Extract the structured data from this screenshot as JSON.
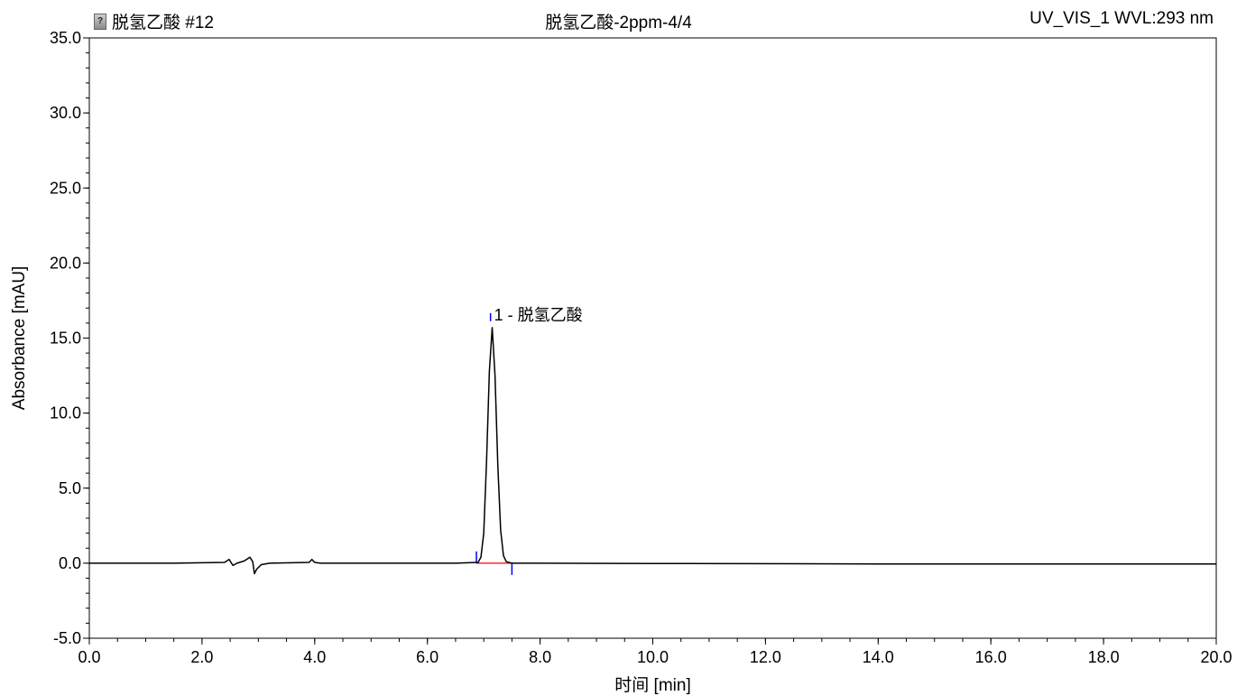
{
  "header": {
    "left_title": "脱氢乙酸 #12",
    "center_title": "脱氢乙酸-2ppm-4/4",
    "right_title": "UV_VIS_1 WVL:293 nm",
    "icon": "question-icon"
  },
  "chart_data": {
    "type": "line",
    "title": "脱氢乙酸-2ppm-4/4",
    "xlabel": "时间 [min]",
    "ylabel": "Absorbance [mAU]",
    "xlim": [
      0.0,
      20.0
    ],
    "ylim": [
      -5.0,
      35.0
    ],
    "x_ticks": [
      "0.0",
      "2.0",
      "4.0",
      "6.0",
      "8.0",
      "10.0",
      "12.0",
      "14.0",
      "16.0",
      "18.0",
      "20.0"
    ],
    "y_ticks": [
      "-5.0",
      "0.0",
      "5.0",
      "10.0",
      "15.0",
      "20.0",
      "25.0",
      "30.0",
      "35.0"
    ],
    "grid": false,
    "colors": {
      "trace": "#000000",
      "baseline": "#ff0000",
      "markers": "#0000ff"
    },
    "series": [
      {
        "x": [
          0.0,
          1.5,
          2.4,
          2.48,
          2.55,
          2.62,
          2.75,
          2.85,
          2.9,
          2.93,
          2.97,
          3.05,
          3.2,
          3.9,
          3.95,
          4.0,
          4.1,
          4.8,
          5.5,
          6.5,
          6.9,
          6.95,
          7.0,
          7.05,
          7.1,
          7.15,
          7.2,
          7.25,
          7.3,
          7.35,
          7.4,
          7.5,
          8.0,
          10.0,
          14.0,
          20.0
        ],
        "y": [
          0.0,
          0.0,
          0.05,
          0.25,
          -0.15,
          0.0,
          0.15,
          0.4,
          0.1,
          -0.7,
          -0.4,
          -0.1,
          0.0,
          0.05,
          0.25,
          0.05,
          0.0,
          0.0,
          0.0,
          0.0,
          0.05,
          0.4,
          2.0,
          6.8,
          12.8,
          15.7,
          12.5,
          6.5,
          2.2,
          0.5,
          0.1,
          0.0,
          0.0,
          -0.02,
          -0.05,
          -0.05
        ]
      }
    ],
    "peaks": [
      {
        "label": "1 - 脱氢乙酸",
        "apex_x": 7.12,
        "apex_y": 15.7,
        "start_x": 6.87,
        "end_x": 7.5
      }
    ]
  }
}
